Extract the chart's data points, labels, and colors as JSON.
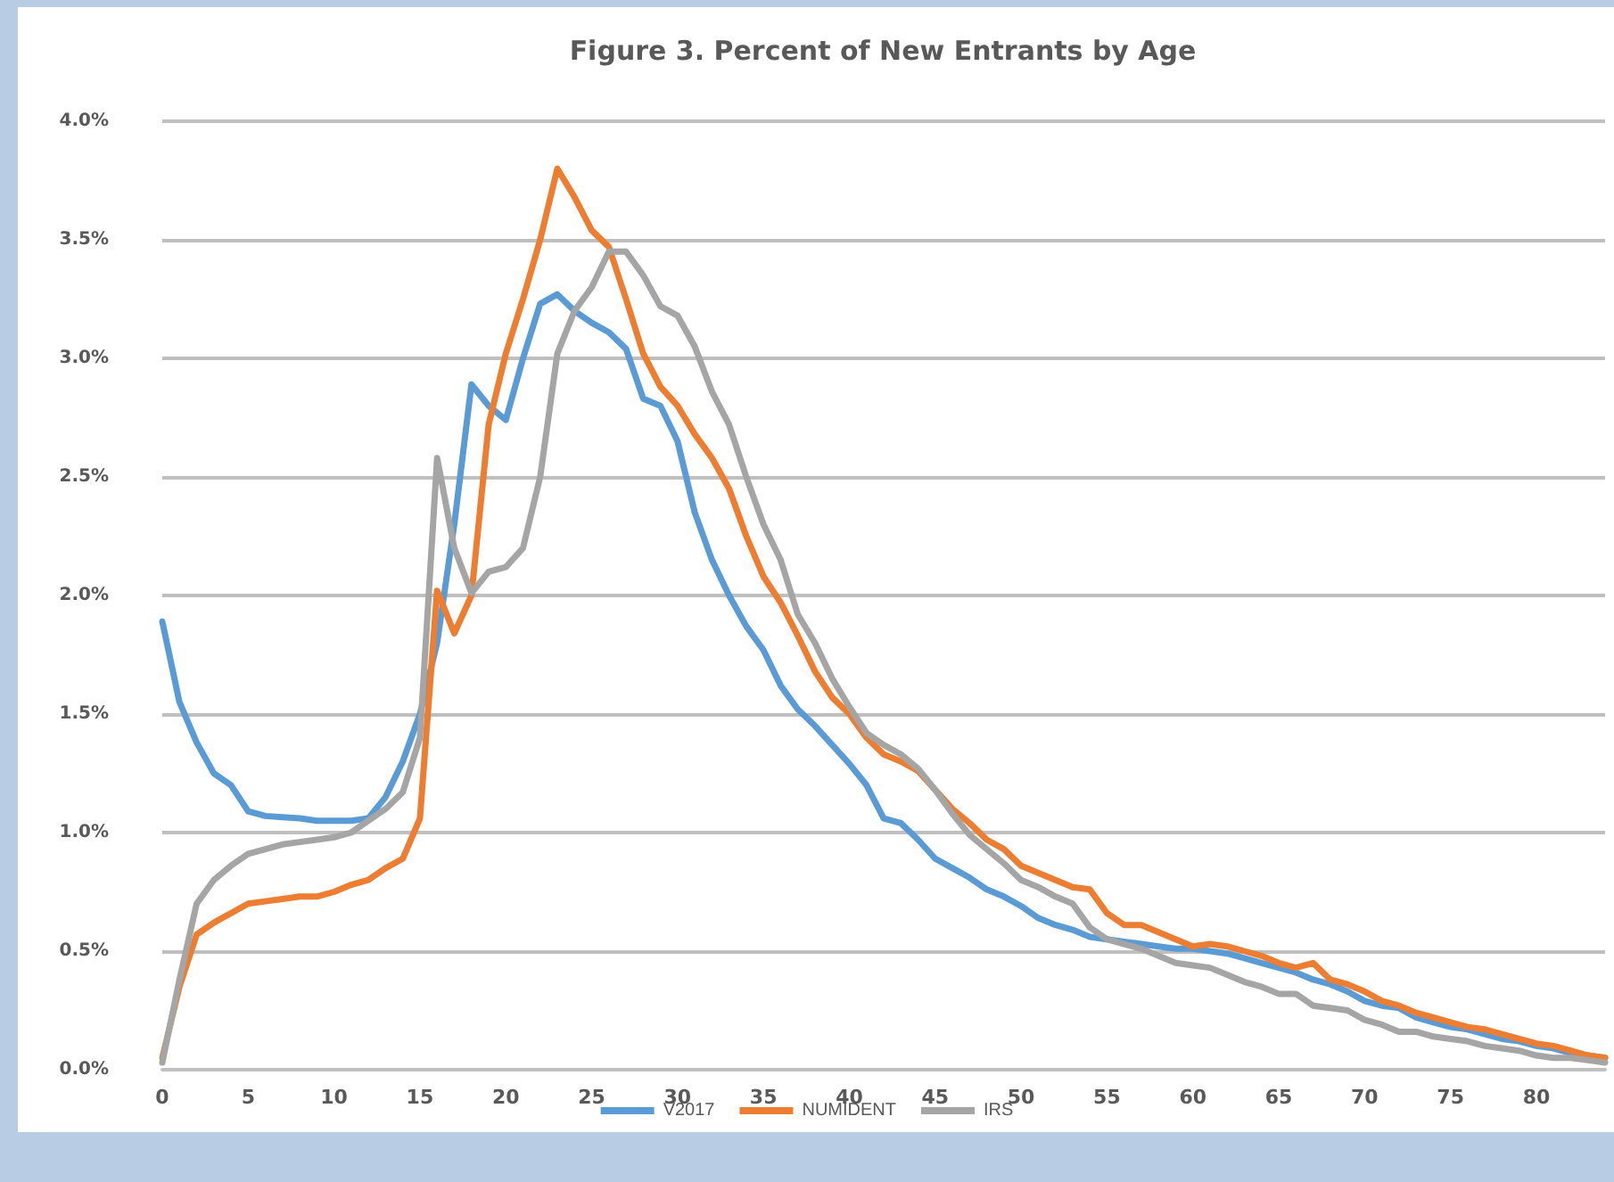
{
  "chart_data": {
    "type": "line",
    "title": "Figure 3. Percent of New Entrants by Age",
    "x": [
      0,
      1,
      2,
      3,
      4,
      5,
      6,
      7,
      8,
      9,
      10,
      11,
      12,
      13,
      14,
      15,
      16,
      17,
      18,
      19,
      20,
      21,
      22,
      23,
      24,
      25,
      26,
      27,
      28,
      29,
      30,
      31,
      32,
      33,
      34,
      35,
      36,
      37,
      38,
      39,
      40,
      41,
      42,
      43,
      44,
      45,
      46,
      47,
      48,
      49,
      50,
      51,
      52,
      53,
      54,
      55,
      56,
      57,
      58,
      59,
      60,
      61,
      62,
      63,
      64,
      65,
      66,
      67,
      68,
      69,
      70,
      71,
      72,
      73,
      74,
      75,
      76,
      77,
      78,
      79,
      80,
      81,
      82,
      83,
      84
    ],
    "series": [
      {
        "name": "V2017",
        "color": "#5b9bd5",
        "values": [
          1.89,
          1.55,
          1.38,
          1.25,
          1.2,
          1.09,
          1.07,
          1.065,
          1.06,
          1.05,
          1.05,
          1.05,
          1.06,
          1.15,
          1.3,
          1.5,
          1.8,
          2.3,
          2.89,
          2.8,
          2.74,
          3.0,
          3.23,
          3.27,
          3.2,
          3.15,
          3.11,
          3.04,
          2.83,
          2.8,
          2.65,
          2.35,
          2.15,
          2.0,
          1.87,
          1.77,
          1.62,
          1.52,
          1.45,
          1.37,
          1.29,
          1.2,
          1.06,
          1.04,
          0.97,
          0.89,
          0.85,
          0.81,
          0.76,
          0.73,
          0.69,
          0.64,
          0.61,
          0.59,
          0.56,
          0.55,
          0.54,
          0.53,
          0.52,
          0.51,
          0.51,
          0.5,
          0.49,
          0.47,
          0.45,
          0.43,
          0.41,
          0.38,
          0.36,
          0.33,
          0.29,
          0.27,
          0.26,
          0.22,
          0.2,
          0.18,
          0.17,
          0.15,
          0.13,
          0.12,
          0.1,
          0.09,
          0.07,
          0.06,
          0.05
        ]
      },
      {
        "name": "NUMIDENT",
        "color": "#ed7d31",
        "values": [
          0.05,
          0.35,
          0.57,
          0.62,
          0.66,
          0.7,
          0.71,
          0.72,
          0.73,
          0.73,
          0.75,
          0.78,
          0.8,
          0.85,
          0.89,
          1.06,
          2.02,
          1.84,
          2.0,
          2.72,
          3.02,
          3.25,
          3.5,
          3.8,
          3.68,
          3.54,
          3.47,
          3.25,
          3.02,
          2.88,
          2.8,
          2.68,
          2.58,
          2.45,
          2.25,
          2.08,
          1.97,
          1.83,
          1.68,
          1.57,
          1.5,
          1.4,
          1.33,
          1.3,
          1.26,
          1.18,
          1.1,
          1.04,
          0.97,
          0.93,
          0.86,
          0.83,
          0.8,
          0.77,
          0.76,
          0.66,
          0.61,
          0.61,
          0.58,
          0.55,
          0.52,
          0.53,
          0.52,
          0.5,
          0.48,
          0.45,
          0.43,
          0.45,
          0.38,
          0.36,
          0.33,
          0.29,
          0.27,
          0.24,
          0.22,
          0.2,
          0.18,
          0.17,
          0.15,
          0.13,
          0.11,
          0.1,
          0.08,
          0.06,
          0.05
        ]
      },
      {
        "name": "IRS",
        "color": "#a5a5a5",
        "values": [
          0.03,
          0.38,
          0.7,
          0.8,
          0.86,
          0.91,
          0.93,
          0.95,
          0.96,
          0.97,
          0.98,
          1.0,
          1.05,
          1.1,
          1.17,
          1.4,
          2.58,
          2.2,
          2.01,
          2.1,
          2.12,
          2.2,
          2.5,
          3.02,
          3.2,
          3.3,
          3.45,
          3.45,
          3.35,
          3.22,
          3.18,
          3.05,
          2.86,
          2.72,
          2.5,
          2.3,
          2.15,
          1.92,
          1.8,
          1.65,
          1.53,
          1.42,
          1.37,
          1.33,
          1.27,
          1.18,
          1.08,
          0.99,
          0.93,
          0.87,
          0.8,
          0.77,
          0.73,
          0.7,
          0.6,
          0.55,
          0.53,
          0.51,
          0.48,
          0.45,
          0.44,
          0.43,
          0.4,
          0.37,
          0.35,
          0.32,
          0.32,
          0.27,
          0.26,
          0.25,
          0.21,
          0.19,
          0.16,
          0.16,
          0.14,
          0.13,
          0.12,
          0.1,
          0.09,
          0.08,
          0.06,
          0.05,
          0.05,
          0.04,
          0.03
        ]
      }
    ],
    "xlim": [
      0,
      84
    ],
    "xticks": [
      0,
      5,
      10,
      15,
      20,
      25,
      30,
      35,
      40,
      45,
      50,
      55,
      60,
      65,
      70,
      75,
      80
    ],
    "ylim": [
      0,
      4
    ],
    "yticks": [
      {
        "value": 0,
        "label": "0.0%"
      },
      {
        "value": 0.5,
        "label": "0.5%"
      },
      {
        "value": 1,
        "label": "1.0%"
      },
      {
        "value": 1.5,
        "label": "1.5%"
      },
      {
        "value": 2,
        "label": "2.0%"
      },
      {
        "value": 2.5,
        "label": "2.5%"
      },
      {
        "value": 3,
        "label": "3.0%"
      },
      {
        "value": 3.5,
        "label": "3.5%"
      },
      {
        "value": 4,
        "label": "4.0%"
      }
    ],
    "grid": "y",
    "legend": "bottom",
    "marker": "none",
    "line_style": "solid"
  }
}
